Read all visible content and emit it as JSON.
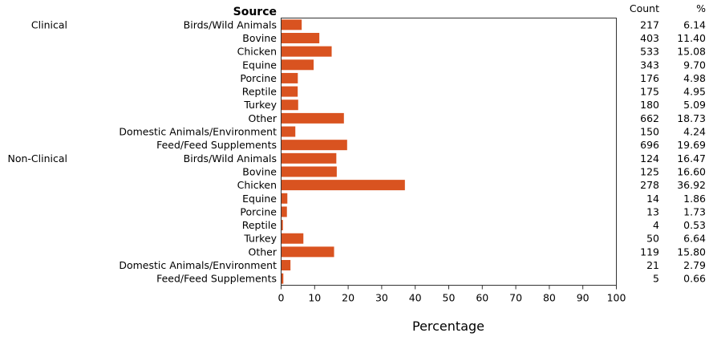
{
  "chart_data": {
    "type": "bar",
    "orientation": "horizontal",
    "title": "",
    "xlabel": "Percentage",
    "ylabel": "Source",
    "xlim": [
      0,
      100
    ],
    "xticks": [
      "0",
      "10",
      "20",
      "30",
      "40",
      "50",
      "60",
      "70",
      "80",
      "90",
      "100"
    ],
    "count_header": "Count",
    "percent_header": "%",
    "bar_color": "#d95320",
    "groups": [
      "Clinical",
      "Non-Clinical"
    ],
    "rows": [
      {
        "group": "Clinical",
        "category": "Birds/Wild Animals",
        "count": "217",
        "pct_label": "6.14",
        "value": 6.14
      },
      {
        "group": "",
        "category": "Bovine",
        "count": "403",
        "pct_label": "11.40",
        "value": 11.4
      },
      {
        "group": "",
        "category": "Chicken",
        "count": "533",
        "pct_label": "15.08",
        "value": 15.08
      },
      {
        "group": "",
        "category": "Equine",
        "count": "343",
        "pct_label": "9.70",
        "value": 9.7
      },
      {
        "group": "",
        "category": "Porcine",
        "count": "176",
        "pct_label": "4.98",
        "value": 4.98
      },
      {
        "group": "",
        "category": "Reptile",
        "count": "175",
        "pct_label": "4.95",
        "value": 4.95
      },
      {
        "group": "",
        "category": "Turkey",
        "count": "180",
        "pct_label": "5.09",
        "value": 5.09
      },
      {
        "group": "",
        "category": "Other",
        "count": "662",
        "pct_label": "18.73",
        "value": 18.73
      },
      {
        "group": "",
        "category": "Domestic Animals/Environment",
        "count": "150",
        "pct_label": "4.24",
        "value": 4.24
      },
      {
        "group": "",
        "category": "Feed/Feed Supplements",
        "count": "696",
        "pct_label": "19.69",
        "value": 19.69
      },
      {
        "group": "Non-Clinical",
        "category": "Birds/Wild Animals",
        "count": "124",
        "pct_label": "16.47",
        "value": 16.47
      },
      {
        "group": "",
        "category": "Bovine",
        "count": "125",
        "pct_label": "16.60",
        "value": 16.6
      },
      {
        "group": "",
        "category": "Chicken",
        "count": "278",
        "pct_label": "36.92",
        "value": 36.92
      },
      {
        "group": "",
        "category": "Equine",
        "count": "14",
        "pct_label": "1.86",
        "value": 1.86
      },
      {
        "group": "",
        "category": "Porcine",
        "count": "13",
        "pct_label": "1.73",
        "value": 1.73
      },
      {
        "group": "",
        "category": "Reptile",
        "count": "4",
        "pct_label": "0.53",
        "value": 0.53
      },
      {
        "group": "",
        "category": "Turkey",
        "count": "50",
        "pct_label": "6.64",
        "value": 6.64
      },
      {
        "group": "",
        "category": "Other",
        "count": "119",
        "pct_label": "15.80",
        "value": 15.8
      },
      {
        "group": "",
        "category": "Domestic Animals/Environment",
        "count": "21",
        "pct_label": "2.79",
        "value": 2.79
      },
      {
        "group": "",
        "category": "Feed/Feed Supplements",
        "count": "5",
        "pct_label": "0.66",
        "value": 0.66
      }
    ]
  }
}
